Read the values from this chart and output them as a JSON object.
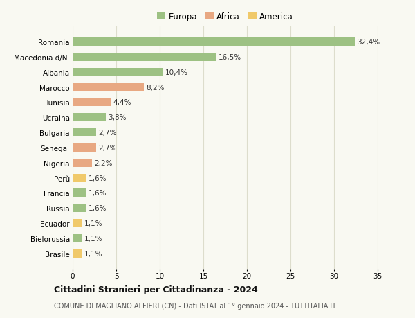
{
  "categories": [
    "Brasile",
    "Bielorussia",
    "Ecuador",
    "Russia",
    "Francia",
    "Perù",
    "Nigeria",
    "Senegal",
    "Bulgaria",
    "Ucraina",
    "Tunisia",
    "Marocco",
    "Albania",
    "Macedonia d/N.",
    "Romania"
  ],
  "values": [
    1.1,
    1.1,
    1.1,
    1.6,
    1.6,
    1.6,
    2.2,
    2.7,
    2.7,
    3.8,
    4.4,
    8.2,
    10.4,
    16.5,
    32.4
  ],
  "continents": [
    "America",
    "Europa",
    "America",
    "Europa",
    "Europa",
    "America",
    "Africa",
    "Africa",
    "Europa",
    "Europa",
    "Africa",
    "Africa",
    "Europa",
    "Europa",
    "Europa"
  ],
  "colors": {
    "Europa": "#9dc183",
    "Africa": "#e8a882",
    "America": "#f0c96a"
  },
  "legend_labels": [
    "Europa",
    "Africa",
    "America"
  ],
  "legend_colors": [
    "#9dc183",
    "#e8a882",
    "#f0c96a"
  ],
  "xlim": [
    0,
    35
  ],
  "xticks": [
    0,
    5,
    10,
    15,
    20,
    25,
    30,
    35
  ],
  "title_main": "Cittadini Stranieri per Cittadinanza - 2024",
  "title_sub": "COMUNE DI MAGLIANO ALFIERI (CN) - Dati ISTAT al 1° gennaio 2024 - TUTTITALIA.IT",
  "background_color": "#f9f9f2",
  "grid_color": "#ddddcc",
  "bar_height": 0.55,
  "label_fontsize": 7.5,
  "tick_fontsize": 7.5,
  "legend_fontsize": 8.5,
  "title_fontsize": 9,
  "subtitle_fontsize": 7
}
